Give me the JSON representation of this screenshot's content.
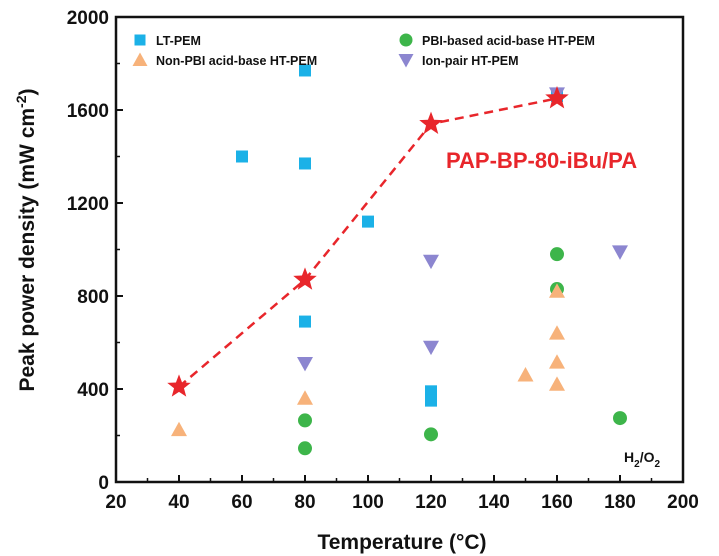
{
  "chart_data": {
    "type": "scatter",
    "xlabel": "Temperature (°C)",
    "ylabel": "Peak power density (mW cm⁻²)",
    "xlim": [
      20,
      200
    ],
    "ylim": [
      0,
      2000
    ],
    "xticks": [
      20,
      40,
      60,
      80,
      100,
      120,
      140,
      160,
      180,
      200
    ],
    "yticks": [
      0,
      400,
      800,
      1200,
      1600,
      2000
    ],
    "grid": false,
    "legend_position": "top",
    "series": [
      {
        "name": "LT-PEM",
        "marker": "square",
        "color": "#1bb1e7",
        "points": [
          [
            60,
            1400
          ],
          [
            80,
            1770
          ],
          [
            80,
            1370
          ],
          [
            80,
            690
          ],
          [
            100,
            1120
          ],
          [
            120,
            390
          ],
          [
            120,
            350
          ],
          [
            160,
            1660
          ]
        ]
      },
      {
        "name": "PBI-based acid-base HT-PEM",
        "marker": "circle",
        "color": "#3db54a",
        "points": [
          [
            80,
            265
          ],
          [
            80,
            145
          ],
          [
            120,
            205
          ],
          [
            160,
            980
          ],
          [
            160,
            830
          ],
          [
            180,
            275
          ]
        ]
      },
      {
        "name": "Non-PBI acid-base HT-PEM",
        "marker": "triangle-up",
        "color": "#f7b27a",
        "points": [
          [
            40,
            225
          ],
          [
            80,
            360
          ],
          [
            150,
            460
          ],
          [
            160,
            820
          ],
          [
            160,
            640
          ],
          [
            160,
            515
          ],
          [
            160,
            420
          ]
        ]
      },
      {
        "name": "Ion-pair HT-PEM",
        "marker": "triangle-down",
        "color": "#8c86d0",
        "points": [
          [
            80,
            510
          ],
          [
            120,
            950
          ],
          [
            120,
            580
          ],
          [
            160,
            1670
          ],
          [
            180,
            990
          ]
        ]
      },
      {
        "name": "PAP-BP-80-iBu/PA",
        "marker": "star",
        "color": "#e8262b",
        "line": "dashed",
        "points": [
          [
            40,
            410
          ],
          [
            80,
            870
          ],
          [
            120,
            1540
          ],
          [
            160,
            1650
          ]
        ]
      }
    ],
    "annotations": {
      "series_label": "PAP-BP-80-iBu/PA",
      "condition_main": "H",
      "condition_sub1": "2",
      "condition_mid": "/O",
      "condition_sub2": "2"
    }
  },
  "axis_text": {
    "xlabel": "Temperature (°C)",
    "ylabel_main": "Peak power density (mW cm",
    "ylabel_sup": "-2",
    "ylabel_end": ")"
  },
  "legend": [
    {
      "label": "LT-PEM",
      "marker": "square",
      "color": "#1bb1e7"
    },
    {
      "label": "PBI-based acid-base HT-PEM",
      "marker": "circle",
      "color": "#3db54a"
    },
    {
      "label": "Non-PBI acid-base HT-PEM",
      "marker": "triangle-up",
      "color": "#f7b27a"
    },
    {
      "label": "Ion-pair HT-PEM",
      "marker": "triangle-down",
      "color": "#8c86d0"
    }
  ]
}
